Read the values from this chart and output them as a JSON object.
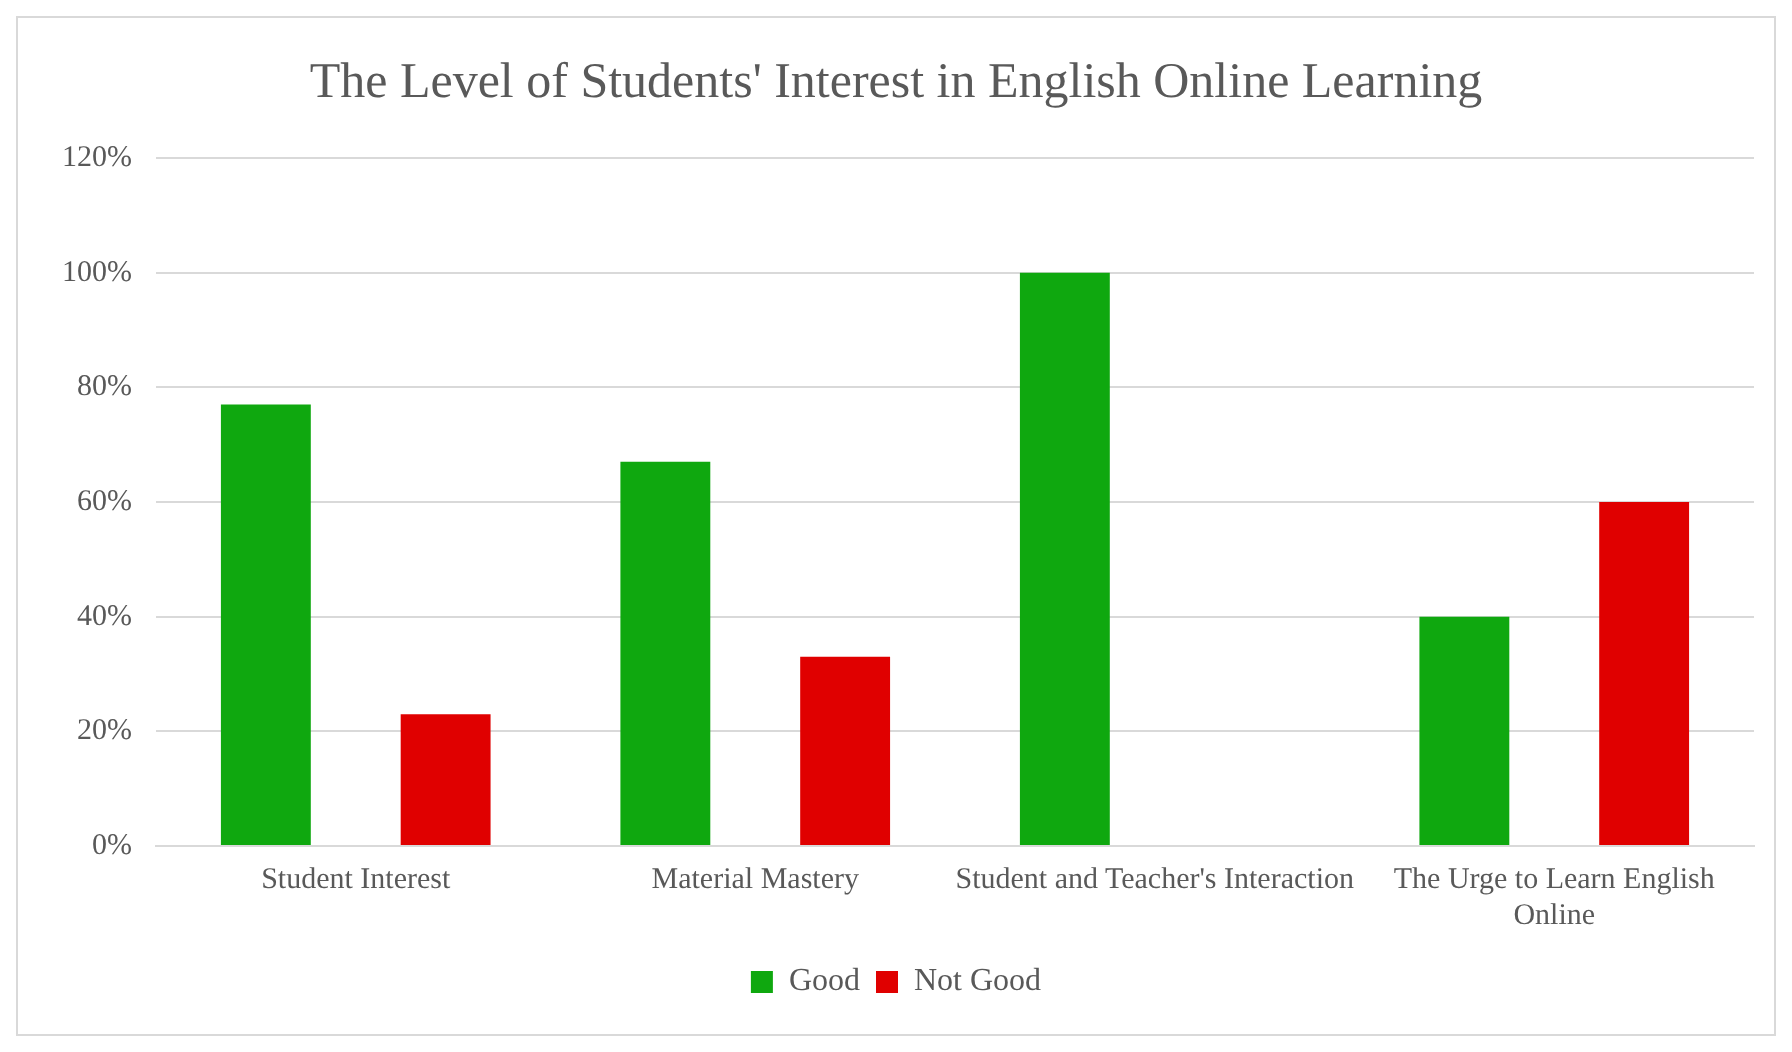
{
  "chart_data": {
    "type": "bar",
    "title": "The Level of Students' Interest in English Online Learning",
    "categories": [
      "Student Interest",
      "Material Mastery",
      "Student and Teacher's Interaction",
      "The Urge to Learn English Online"
    ],
    "series": [
      {
        "name": "Good",
        "color": "#0fa80f",
        "values": [
          77,
          67,
          100,
          40
        ]
      },
      {
        "name": "Not Good",
        "color": "#e00000",
        "values": [
          23,
          33,
          0,
          60
        ]
      }
    ],
    "ylim": [
      0,
      120
    ],
    "yticks": [
      {
        "value": 0,
        "label": "0%"
      },
      {
        "value": 20,
        "label": "20%"
      },
      {
        "value": 40,
        "label": "40%"
      },
      {
        "value": 60,
        "label": "60%"
      },
      {
        "value": 80,
        "label": "80%"
      },
      {
        "value": 100,
        "label": "100%"
      },
      {
        "value": 120,
        "label": "120%"
      }
    ],
    "grid": "y",
    "legend": "bottom"
  }
}
